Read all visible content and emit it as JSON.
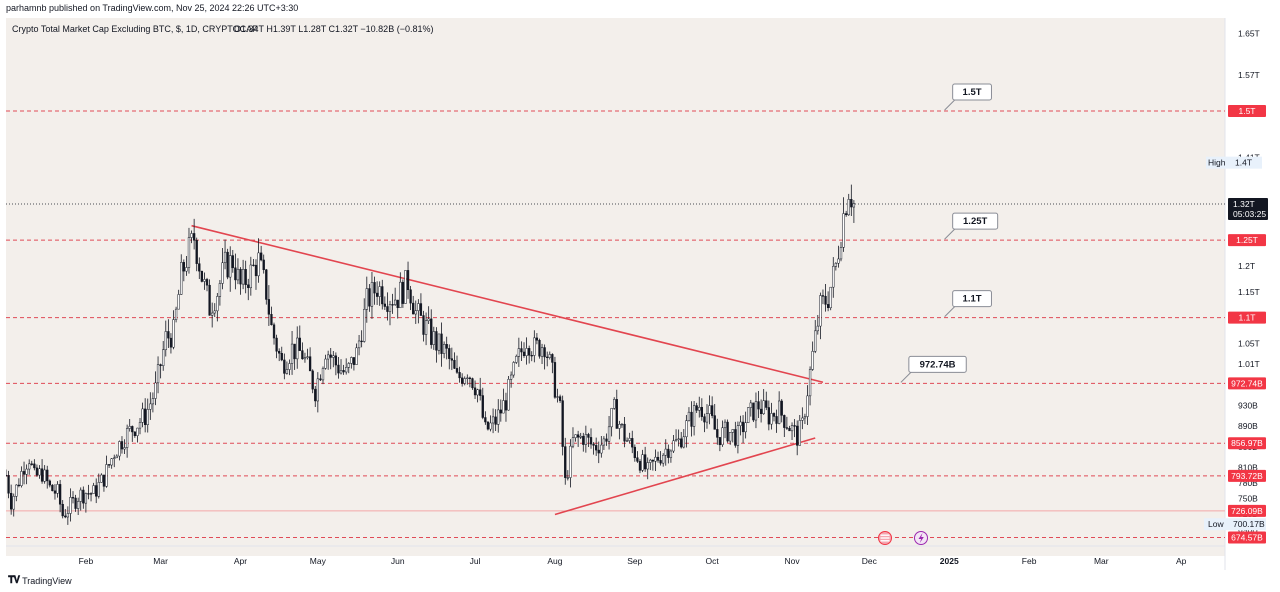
{
  "publish_line": "parhamnb published on TradingView.com, Nov 25, 2024 22:26 UTC+3:30",
  "brand": "TradingView",
  "legend": {
    "title": "Crypto Total Market Cap Excluding BTC, $, 1D, CRYPTOCAP",
    "ohlc": "O1.34T  H1.39T  L1.28T  C1.32T  −10.82B (−0.81%)"
  },
  "colors": {
    "background": "#f3efeb",
    "level_line": "#e04b57",
    "trend_line": "#e2454f",
    "candle_body": "#131722",
    "label_red": "#f23645"
  },
  "chart_data": {
    "type": "candlestick",
    "title": "Crypto Total Market Cap Excluding BTC, $, 1D, CRYPTOCAP",
    "y_unit": "USD",
    "y_scale": "linear",
    "ylim": [
      658000000000,
      1680000000000
    ],
    "xlim": [
      "2024-01-01",
      "2025-04-18"
    ],
    "y_ticks": [
      {
        "value": 1650000000000,
        "label": "1.65T"
      },
      {
        "value": 1570000000000,
        "label": "1.57T"
      },
      {
        "value": 1410000000000,
        "label": "1.41T"
      },
      {
        "value": 1200000000000,
        "label": "1.2T"
      },
      {
        "value": 1150000000000,
        "label": "1.15T"
      },
      {
        "value": 1050000000000,
        "label": "1.05T"
      },
      {
        "value": 1010000000000,
        "label": "1.01T"
      },
      {
        "value": 930000000000,
        "label": "930B"
      },
      {
        "value": 890000000000,
        "label": "890B"
      },
      {
        "value": 850000000000,
        "label": "850B"
      },
      {
        "value": 810000000000,
        "label": "810B"
      },
      {
        "value": 780000000000,
        "label": "780B"
      },
      {
        "value": 750000000000,
        "label": "750B"
      },
      {
        "value": 720000000000,
        "label": "720B"
      },
      {
        "value": 690000000000,
        "label": "690B"
      }
    ],
    "x_ticks": [
      {
        "date": "2024-02-01",
        "label": "Feb"
      },
      {
        "date": "2024-03-01",
        "label": "Mar"
      },
      {
        "date": "2024-04-01",
        "label": "Apr"
      },
      {
        "date": "2024-05-01",
        "label": "May"
      },
      {
        "date": "2024-06-01",
        "label": "Jun"
      },
      {
        "date": "2024-07-01",
        "label": "Jul"
      },
      {
        "date": "2024-08-01",
        "label": "Aug"
      },
      {
        "date": "2024-09-01",
        "label": "Sep"
      },
      {
        "date": "2024-10-01",
        "label": "Oct"
      },
      {
        "date": "2024-11-01",
        "label": "Nov"
      },
      {
        "date": "2024-12-01",
        "label": "Dec"
      },
      {
        "date": "2025-01-01",
        "label": "2025"
      },
      {
        "date": "2025-02-01",
        "label": "Feb"
      },
      {
        "date": "2025-03-01",
        "label": "Mar"
      },
      {
        "date": "2025-04-01",
        "label": "Ap"
      }
    ],
    "horizontal_levels": [
      {
        "value": 1500000000000,
        "label": "1.5T",
        "note": "1.5T",
        "note_date": "2024-12-31"
      },
      {
        "value": 1250000000000,
        "label": "1.25T",
        "note": "1.25T",
        "note_date": "2024-12-31"
      },
      {
        "value": 1100000000000,
        "label": "1.1T",
        "note": "1.1T",
        "note_date": "2024-12-31"
      },
      {
        "value": 972740000000,
        "label": "972.74B",
        "note": "972.74B",
        "note_date": "2024-12-14"
      },
      {
        "value": 856970000000,
        "label": "856.97B"
      },
      {
        "value": 793720000000,
        "label": "793.72B"
      },
      {
        "value": 726090000000,
        "label": "726.09B",
        "style": "solid-light"
      },
      {
        "value": 674570000000,
        "label": "674.57B"
      }
    ],
    "last_price": {
      "value": 1320000000000,
      "label": "1.32T",
      "countdown": "05:03:25"
    },
    "high_marker": {
      "label": "High",
      "value_label": "1.4T",
      "value": 1400000000000
    },
    "low_marker": {
      "label": "Low",
      "value_label": "700.17B",
      "value": 700170000000
    },
    "trendlines": [
      {
        "name": "descending resistance",
        "points": [
          [
            "2024-03-13",
            1278000000000
          ],
          [
            "2024-11-13",
            975000000000
          ]
        ]
      },
      {
        "name": "ascending support",
        "points": [
          [
            "2024-08-01",
            719000000000
          ],
          [
            "2024-11-10",
            867000000000
          ]
        ]
      }
    ],
    "candles_close_path": [
      [
        "2024-01-01",
        795000000000
      ],
      [
        "2024-01-03",
        745000000000
      ],
      [
        "2024-01-05",
        770000000000
      ],
      [
        "2024-01-08",
        815000000000
      ],
      [
        "2024-01-10",
        830000000000
      ],
      [
        "2024-01-12",
        790000000000
      ],
      [
        "2024-01-15",
        800000000000
      ],
      [
        "2024-01-18",
        770000000000
      ],
      [
        "2024-01-21",
        760000000000
      ],
      [
        "2024-01-23",
        718000000000
      ],
      [
        "2024-01-26",
        735000000000
      ],
      [
        "2024-01-29",
        755000000000
      ],
      [
        "2024-02-01",
        762000000000
      ],
      [
        "2024-02-04",
        760000000000
      ],
      [
        "2024-02-08",
        790000000000
      ],
      [
        "2024-02-12",
        840000000000
      ],
      [
        "2024-02-16",
        870000000000
      ],
      [
        "2024-02-20",
        890000000000
      ],
      [
        "2024-02-24",
        910000000000
      ],
      [
        "2024-02-28",
        960000000000
      ],
      [
        "2024-03-03",
        1060000000000
      ],
      [
        "2024-03-06",
        1070000000000
      ],
      [
        "2024-03-09",
        1180000000000
      ],
      [
        "2024-03-12",
        1230000000000
      ],
      [
        "2024-03-14",
        1255000000000
      ],
      [
        "2024-03-17",
        1180000000000
      ],
      [
        "2024-03-20",
        1120000000000
      ],
      [
        "2024-03-23",
        1150000000000
      ],
      [
        "2024-03-26",
        1200000000000
      ],
      [
        "2024-03-29",
        1210000000000
      ],
      [
        "2024-04-01",
        1160000000000
      ],
      [
        "2024-04-04",
        1180000000000
      ],
      [
        "2024-04-08",
        1210000000000
      ],
      [
        "2024-04-11",
        1150000000000
      ],
      [
        "2024-04-13",
        1080000000000
      ],
      [
        "2024-04-17",
        1010000000000
      ],
      [
        "2024-04-21",
        1040000000000
      ],
      [
        "2024-04-25",
        1030000000000
      ],
      [
        "2024-04-30",
        960000000000
      ],
      [
        "2024-05-04",
        1040000000000
      ],
      [
        "2024-05-08",
        1010000000000
      ],
      [
        "2024-05-12",
        990000000000
      ],
      [
        "2024-05-16",
        1030000000000
      ],
      [
        "2024-05-20",
        1130000000000
      ],
      [
        "2024-05-24",
        1160000000000
      ],
      [
        "2024-05-28",
        1140000000000
      ],
      [
        "2024-06-01",
        1140000000000
      ],
      [
        "2024-06-05",
        1170000000000
      ],
      [
        "2024-06-08",
        1110000000000
      ],
      [
        "2024-06-12",
        1080000000000
      ],
      [
        "2024-06-16",
        1050000000000
      ],
      [
        "2024-06-20",
        1030000000000
      ],
      [
        "2024-06-24",
        980000000000
      ],
      [
        "2024-06-28",
        1000000000000
      ],
      [
        "2024-07-02",
        960000000000
      ],
      [
        "2024-07-05",
        880000000000
      ],
      [
        "2024-07-09",
        900000000000
      ],
      [
        "2024-07-13",
        940000000000
      ],
      [
        "2024-07-17",
        1010000000000
      ],
      [
        "2024-07-21",
        1060000000000
      ],
      [
        "2024-07-24",
        1040000000000
      ],
      [
        "2024-07-28",
        1050000000000
      ],
      [
        "2024-07-31",
        990000000000
      ],
      [
        "2024-08-03",
        920000000000
      ],
      [
        "2024-08-05",
        780000000000
      ],
      [
        "2024-08-08",
        860000000000
      ],
      [
        "2024-08-12",
        870000000000
      ],
      [
        "2024-08-16",
        850000000000
      ],
      [
        "2024-08-20",
        860000000000
      ],
      [
        "2024-08-24",
        920000000000
      ],
      [
        "2024-08-28",
        870000000000
      ],
      [
        "2024-09-01",
        840000000000
      ],
      [
        "2024-09-06",
        800000000000
      ],
      [
        "2024-09-10",
        830000000000
      ],
      [
        "2024-09-14",
        850000000000
      ],
      [
        "2024-09-18",
        860000000000
      ],
      [
        "2024-09-22",
        900000000000
      ],
      [
        "2024-09-26",
        930000000000
      ],
      [
        "2024-09-30",
        910000000000
      ],
      [
        "2024-10-03",
        870000000000
      ],
      [
        "2024-10-07",
        880000000000
      ],
      [
        "2024-10-11",
        870000000000
      ],
      [
        "2024-10-15",
        910000000000
      ],
      [
        "2024-10-19",
        930000000000
      ],
      [
        "2024-10-23",
        910000000000
      ],
      [
        "2024-10-27",
        920000000000
      ],
      [
        "2024-10-31",
        890000000000
      ],
      [
        "2024-11-03",
        870000000000
      ],
      [
        "2024-11-05",
        890000000000
      ],
      [
        "2024-11-07",
        960000000000
      ],
      [
        "2024-11-10",
        1060000000000
      ],
      [
        "2024-11-12",
        1120000000000
      ],
      [
        "2024-11-15",
        1140000000000
      ],
      [
        "2024-11-18",
        1200000000000
      ],
      [
        "2024-11-21",
        1300000000000
      ],
      [
        "2024-11-23",
        1350000000000
      ],
      [
        "2024-11-25",
        1320000000000
      ]
    ],
    "event_icons": [
      "flag-icon",
      "lightning-icon"
    ]
  }
}
